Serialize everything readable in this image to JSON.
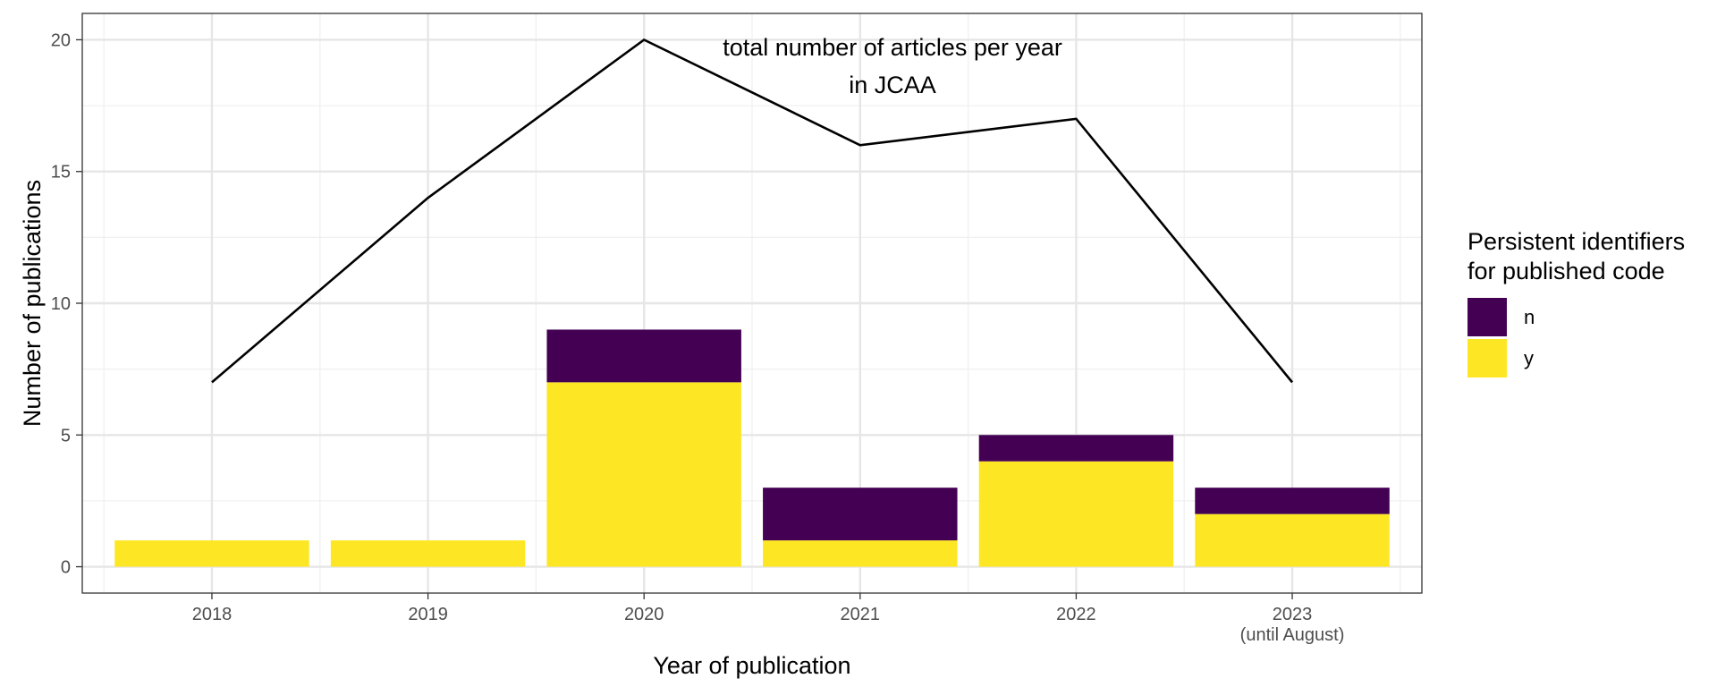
{
  "chart_data": {
    "type": "bar",
    "stacked": true,
    "categories": [
      "2018",
      "2019",
      "2020",
      "2021",
      "2022",
      "2023"
    ],
    "category_sublabels": [
      "",
      "",
      "",
      "",
      "",
      "(until August)"
    ],
    "series": [
      {
        "name": "y",
        "values": [
          1,
          1,
          7,
          1,
          4,
          2
        ],
        "color": "#FDE725"
      },
      {
        "name": "n",
        "values": [
          0,
          0,
          2,
          2,
          1,
          1
        ],
        "color": "#440154"
      }
    ],
    "line": {
      "values": [
        7,
        14,
        20,
        16,
        17,
        7
      ],
      "color": "#000000",
      "annotation": [
        "total number of articles per year",
        "in JCAA"
      ]
    },
    "xlabel": "Year of publication",
    "ylabel": "Number of publications",
    "ylim": [
      -1,
      21
    ],
    "yticks": [
      0,
      5,
      10,
      15,
      20
    ],
    "grid": true,
    "legend": {
      "title": [
        "Persistent identifiers",
        "for published code"
      ],
      "position": "right",
      "entries": [
        {
          "label": "n",
          "color": "#440154"
        },
        {
          "label": "y",
          "color": "#FDE725"
        }
      ]
    }
  }
}
